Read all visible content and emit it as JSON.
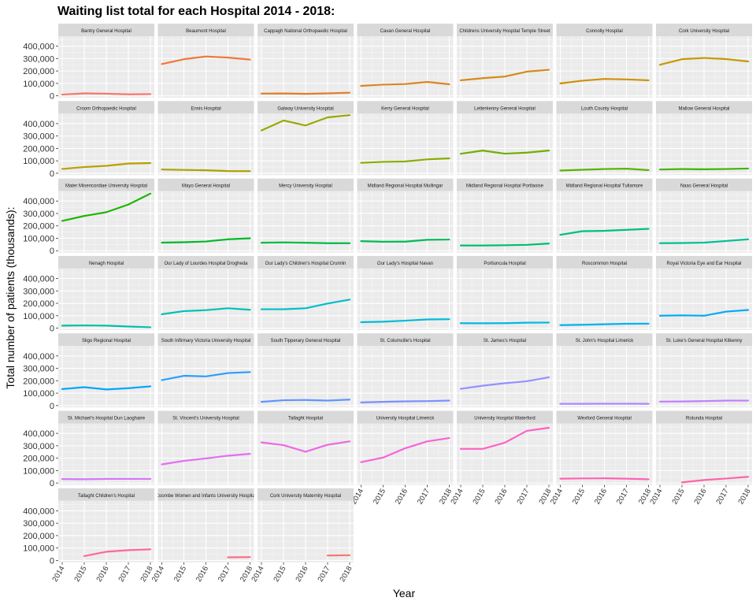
{
  "chart_data": {
    "type": "line",
    "title": "Waiting list total for each Hospital 2014 - 2018:",
    "xlabel": "Year",
    "ylabel": "Total number of patients (thousands):",
    "x": [
      2014,
      2015,
      2016,
      2017,
      2018
    ],
    "x_tick_labels": [
      "2014",
      "2015",
      "2016",
      "2017",
      "2018"
    ],
    "y_ticks": [
      0,
      100000,
      200000,
      300000,
      400000
    ],
    "y_tick_labels": [
      "0",
      "100,000",
      "200,000",
      "300,000",
      "400,000"
    ],
    "ylim": [
      -15000,
      480000
    ],
    "grid": true,
    "legend": "none",
    "facet_columns": 7,
    "series": [
      {
        "name": "Bantry General Hospital",
        "color": "#F8766D",
        "values": [
          10000,
          20000,
          17000,
          12000,
          14000
        ]
      },
      {
        "name": "Beaumont Hospital",
        "color": "#F0783A",
        "values": [
          256000,
          295000,
          317000,
          308000,
          292000
        ]
      },
      {
        "name": "Cappagh National Orthopaedic Hospital",
        "color": "#E27D2A",
        "values": [
          18000,
          19000,
          16000,
          20000,
          25000
        ]
      },
      {
        "name": "Cavan General Hospital",
        "color": "#DD8522",
        "values": [
          80000,
          90000,
          95000,
          112000,
          93000
        ]
      },
      {
        "name": "Childrens University Hospital Temple Street",
        "color": "#D58A12",
        "values": [
          125000,
          142000,
          155000,
          195000,
          210000
        ]
      },
      {
        "name": "Connolly Hospital",
        "color": "#CD9008",
        "values": [
          100000,
          122000,
          136000,
          132000,
          125000
        ]
      },
      {
        "name": "Cork University Hospital",
        "color": "#C49A00",
        "values": [
          250000,
          295000,
          305000,
          296000,
          277000
        ]
      },
      {
        "name": "Croom Orthopaedic Hospital",
        "color": "#B9A000",
        "values": [
          35000,
          50000,
          60000,
          78000,
          82000
        ]
      },
      {
        "name": "Ennis Hospital",
        "color": "#ABA300",
        "values": [
          30000,
          27000,
          24000,
          18000,
          17000
        ]
      },
      {
        "name": "Galway University Hospital",
        "color": "#9AA800",
        "values": [
          345000,
          425000,
          385000,
          450000,
          468000
        ]
      },
      {
        "name": "Kerry General Hospital",
        "color": "#88AC00",
        "values": [
          84000,
          92000,
          95000,
          112000,
          120000
        ]
      },
      {
        "name": "Letterkenny General Hospital",
        "color": "#72AE00",
        "values": [
          157000,
          183000,
          158000,
          166000,
          183000
        ]
      },
      {
        "name": "Louth County Hospital",
        "color": "#5AB300",
        "values": [
          22000,
          28000,
          34000,
          37000,
          25000
        ]
      },
      {
        "name": "Mallow General Hospital",
        "color": "#3CB500",
        "values": [
          30000,
          34000,
          32000,
          34000,
          38000
        ]
      },
      {
        "name": "Mater Misericordiae University Hospital",
        "color": "#1DB700",
        "values": [
          240000,
          280000,
          310000,
          372000,
          460000
        ]
      },
      {
        "name": "Mayo General Hospital",
        "color": "#00B92C",
        "values": [
          65000,
          68000,
          74000,
          92000,
          100000
        ]
      },
      {
        "name": "Mercy University Hospital",
        "color": "#00BB45",
        "values": [
          64000,
          67000,
          64000,
          60000,
          60000
        ]
      },
      {
        "name": "Midland Regional Hospital Mullingar",
        "color": "#00BC5A",
        "values": [
          77000,
          72000,
          73000,
          88000,
          90000
        ]
      },
      {
        "name": "Midland Regional Hospital Portlaoise",
        "color": "#00BD6E",
        "values": [
          42000,
          42000,
          44000,
          47000,
          58000
        ]
      },
      {
        "name": "Midland Regional Hospital Tullamore",
        "color": "#00BE83",
        "values": [
          128000,
          157000,
          160000,
          168000,
          176000
        ]
      },
      {
        "name": "Naas General Hospital",
        "color": "#00BF96",
        "values": [
          60000,
          62000,
          65000,
          78000,
          92000
        ]
      },
      {
        "name": "Nenagh Hospital",
        "color": "#00C0A8",
        "values": [
          20000,
          22000,
          20000,
          13000,
          7000
        ]
      },
      {
        "name": "Our Lady of Lourdes Hospital Drogheda",
        "color": "#00C0B9",
        "values": [
          112000,
          137000,
          145000,
          160000,
          148000
        ]
      },
      {
        "name": "Our Lady's Children's Hospital Crumlin",
        "color": "#00BFC8",
        "values": [
          152000,
          152000,
          160000,
          198000,
          230000
        ]
      },
      {
        "name": "Our Lady's Hospital Navan",
        "color": "#00BCD6",
        "values": [
          48000,
          52000,
          60000,
          70000,
          72000
        ]
      },
      {
        "name": "Portiuncula Hospital",
        "color": "#00B9E3",
        "values": [
          40000,
          39000,
          40000,
          44000,
          45000
        ]
      },
      {
        "name": "Roscommon Hospital",
        "color": "#00B3EF",
        "values": [
          24000,
          27000,
          31000,
          35000,
          36000
        ]
      },
      {
        "name": "Royal Victoria Eye and Ear Hospital",
        "color": "#00ACF6",
        "values": [
          100000,
          103000,
          100000,
          133000,
          146000
        ]
      },
      {
        "name": "Sligo Regional Hospital",
        "color": "#00A5FF",
        "values": [
          133000,
          148000,
          130000,
          140000,
          155000
        ]
      },
      {
        "name": "South Infirmary Victoria University Hospital",
        "color": "#2B9DFF",
        "values": [
          205000,
          240000,
          235000,
          262000,
          270000
        ]
      },
      {
        "name": "South Tipperary General Hospital",
        "color": "#5C96FF",
        "values": [
          30000,
          43000,
          45000,
          40000,
          48000
        ]
      },
      {
        "name": "St. Columcille's Hospital",
        "color": "#7B8FFF",
        "values": [
          25000,
          30000,
          34000,
          36000,
          40000
        ]
      },
      {
        "name": "St. James's Hospital",
        "color": "#9590FF",
        "values": [
          135000,
          160000,
          180000,
          196000,
          228000
        ]
      },
      {
        "name": "St. John's Hospital Limerick",
        "color": "#AC88FF",
        "values": [
          14000,
          14000,
          15000,
          15000,
          14000
        ]
      },
      {
        "name": "St. Luke's General Hospital Kilkenny",
        "color": "#C17FFF",
        "values": [
          32000,
          33000,
          36000,
          40000,
          40000
        ]
      },
      {
        "name": "St. Michael's Hospital Dun Laoghaire",
        "color": "#D377FA",
        "values": [
          32000,
          30000,
          33000,
          33000,
          33000
        ]
      },
      {
        "name": "St. Vincent's University Hospital",
        "color": "#E26FF1",
        "values": [
          150000,
          178000,
          198000,
          220000,
          235000
        ]
      },
      {
        "name": "Tallaght Hospital",
        "color": "#EE68E3",
        "values": [
          327000,
          305000,
          252000,
          308000,
          335000
        ]
      },
      {
        "name": "University Hospital Limerick",
        "color": "#F763D9",
        "values": [
          168000,
          205000,
          280000,
          335000,
          362000
        ]
      },
      {
        "name": "University Hospital Waterford",
        "color": "#FC61C8",
        "values": [
          275000,
          275000,
          325000,
          420000,
          445000
        ]
      },
      {
        "name": "Wexford General Hospital",
        "color": "#FF62B5",
        "values": [
          35000,
          37000,
          38000,
          35000,
          30000
        ]
      },
      {
        "name": "Rotunda Hospital",
        "color": "#FF64A6",
        "values": [
          null,
          5000,
          24000,
          36000,
          50000
        ]
      },
      {
        "name": "Tallaght Children's Hospital",
        "color": "#FF6896",
        "values": [
          null,
          35000,
          70000,
          83000,
          90000
        ]
      },
      {
        "name": "Coombe Women and Infants University Hospital",
        "color": "#FD6C84",
        "values": [
          null,
          null,
          null,
          25000,
          27000
        ]
      },
      {
        "name": "Cork University Maternity Hospital",
        "color": "#F8766D",
        "values": [
          null,
          null,
          null,
          40000,
          42000
        ]
      }
    ]
  }
}
